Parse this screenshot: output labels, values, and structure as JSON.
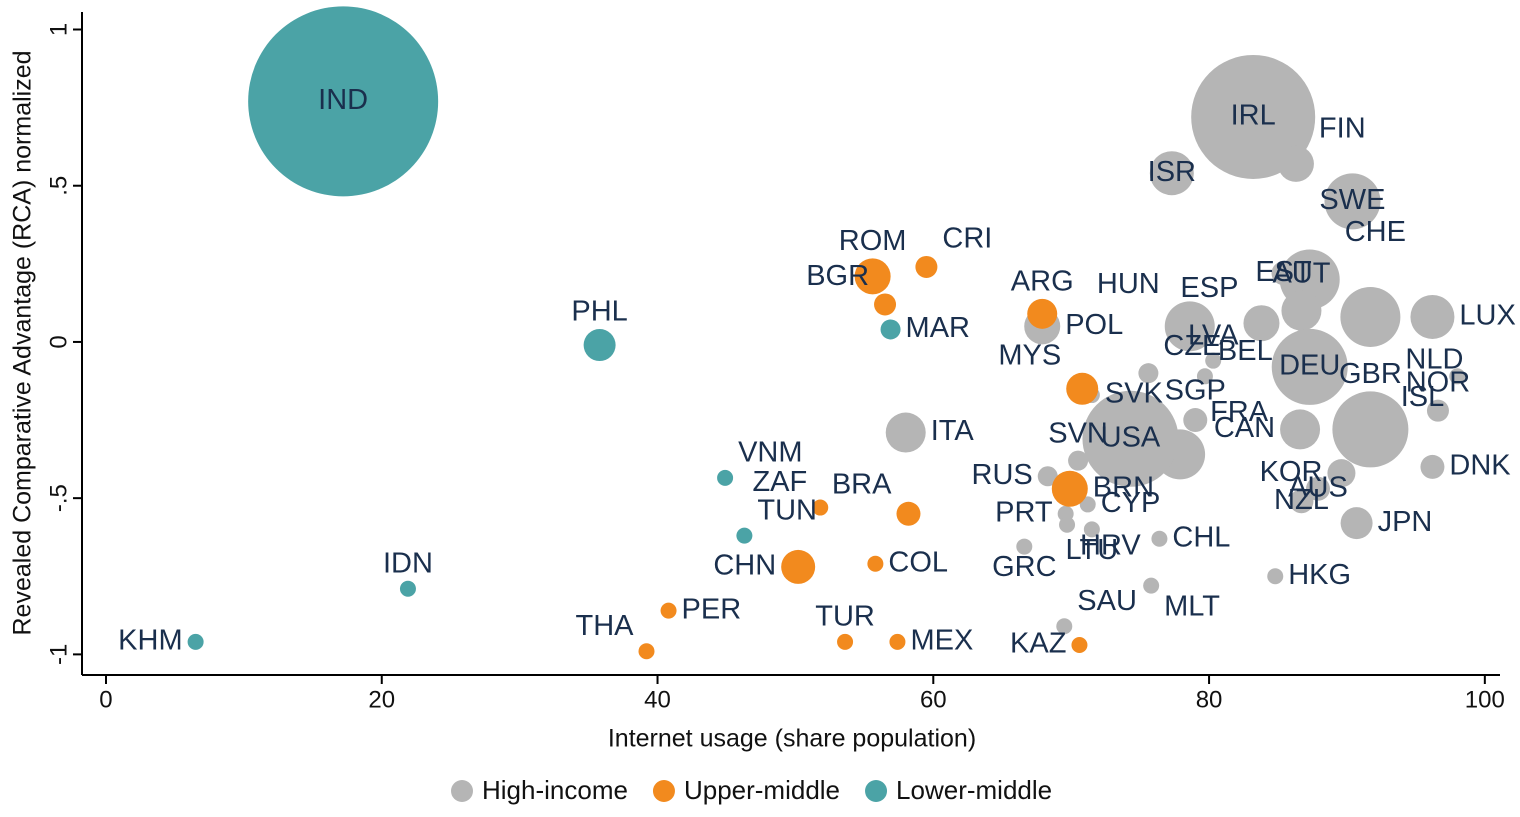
{
  "chart_data": {
    "type": "bubble",
    "x_label": "Internet usage (share population)",
    "y_label": "Revealed Comparative Advantage (RCA) normalized",
    "xlim": [
      -1.74,
      101.1
    ],
    "ylim": [
      -1.066,
      1.056
    ],
    "xticks": [
      0,
      20,
      40,
      60,
      80,
      100
    ],
    "yticks": [
      -1,
      {
        "value": -0.5,
        "label": "-.5"
      },
      0,
      {
        "value": 0.5,
        "label": ".5"
      },
      1
    ],
    "legend": "bottom",
    "series": [
      {
        "name": "High-income",
        "color": "#b5b5b5",
        "labels": [
          "IRL",
          "FIN",
          "ISR",
          "SWE",
          "EST",
          "CHE",
          "HUN",
          "ESP",
          "AUT",
          "LUX",
          "NLD",
          "POL",
          "CZE",
          "LVA",
          "BEL",
          "DEU",
          "ISL",
          "NOR",
          "SVK",
          "SGP",
          "GBR",
          "CAN",
          "FRA",
          "USA",
          "ITA",
          "SVN",
          "KOR",
          "DNK",
          "AUS",
          "RUS",
          "NZL",
          "JPN",
          "PRT",
          "CYP",
          "LTU",
          "CHL",
          "HRV",
          "GRC",
          "HKG",
          "MLT",
          "SAU"
        ],
        "x": [
          83.2,
          86.3,
          77.3,
          90.4,
          85.4,
          87.3,
          78.6,
          83.8,
          86.7,
          96.2,
          91.7,
          67.9,
          75.6,
          80.3,
          79.7,
          87.3,
          98.0,
          96.6,
          71.5,
          79.0,
          91.7,
          86.6,
          77.9,
          74.3,
          58.0,
          70.5,
          89.6,
          96.2,
          87.9,
          68.3,
          86.7,
          90.7,
          69.6,
          71.2,
          71.5,
          76.4,
          69.7,
          66.6,
          84.8,
          75.8,
          69.5
        ],
        "values": [
          0.72,
          0.57,
          0.54,
          0.45,
          0.22,
          0.2,
          0.05,
          0.06,
          0.1,
          0.08,
          0.08,
          0.05,
          -0.1,
          -0.06,
          -0.11,
          -0.08,
          -0.11,
          -0.22,
          -0.17,
          -0.25,
          -0.28,
          -0.28,
          -0.36,
          -0.31,
          -0.29,
          -0.38,
          -0.42,
          -0.4,
          -0.47,
          -0.43,
          -0.51,
          -0.58,
          -0.55,
          -0.52,
          -0.6,
          -0.63,
          -0.585,
          -0.655,
          -0.75,
          -0.78,
          -0.91
        ],
        "sizes": [
          62,
          18,
          22,
          28,
          12,
          30,
          25,
          18,
          20,
          22,
          30,
          18,
          10,
          8,
          8,
          38,
          8,
          11,
          8,
          12,
          38,
          20,
          25,
          48,
          20,
          10,
          14,
          12,
          12,
          10,
          12,
          16,
          8,
          8,
          8,
          8,
          8,
          8,
          8,
          8,
          8
        ]
      },
      {
        "name": "Upper-middle",
        "color": "#f28a1e",
        "labels": [
          "ROM",
          "CRI",
          "BGR",
          "ARG",
          "MYS",
          "BRN",
          "BRA",
          "ZAF",
          "CHN",
          "COL",
          "PER",
          "THA",
          "TUR",
          "MEX",
          "KAZ"
        ],
        "x": [
          55.6,
          59.5,
          56.5,
          67.9,
          70.8,
          69.9,
          58.2,
          51.8,
          50.2,
          55.8,
          40.8,
          39.2,
          53.6,
          57.4,
          70.6
        ],
        "values": [
          0.21,
          0.24,
          0.12,
          0.09,
          -0.15,
          -0.47,
          -0.55,
          -0.53,
          -0.72,
          -0.71,
          -0.86,
          -0.99,
          -0.96,
          -0.96,
          -0.97
        ],
        "sizes": [
          18,
          11,
          11,
          15,
          16,
          18,
          12,
          8,
          17,
          8,
          8,
          8,
          8,
          8,
          8
        ]
      },
      {
        "name": "Lower-middle",
        "color": "#4ba3a6",
        "labels": [
          "IND",
          "PHL",
          "MAR",
          "VNM",
          "TUN",
          "IDN",
          "KHM"
        ],
        "x": [
          17.2,
          35.8,
          56.9,
          44.9,
          46.3,
          21.9,
          6.5
        ],
        "values": [
          0.77,
          -0.01,
          0.04,
          -0.435,
          -0.62,
          -0.79,
          -0.96
        ],
        "sizes": [
          95,
          16,
          10,
          8,
          8,
          8,
          8
        ]
      }
    ]
  }
}
